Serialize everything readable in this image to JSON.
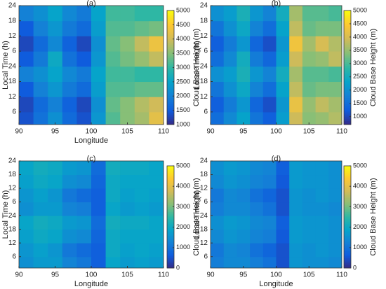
{
  "chart_data": [
    {
      "type": "heatmap",
      "title": "(a)",
      "x_label": "Longitude",
      "y_label": "Local Time (h)",
      "colorbar_label": "Cloud Base Height (m)",
      "xbins": [
        90,
        92,
        94,
        96,
        98,
        100,
        102,
        104,
        106,
        108,
        110
      ],
      "ybins": [
        0,
        6,
        12,
        18,
        24,
        30,
        36,
        42,
        48
      ],
      "values": [
        [
          1400,
          1800,
          2200,
          1700,
          1400,
          2300,
          3200,
          3500,
          3700,
          4200
        ],
        [
          1300,
          1700,
          2000,
          1600,
          1300,
          2200,
          3300,
          3500,
          3800,
          4000
        ],
        [
          1500,
          2000,
          2300,
          1900,
          1700,
          2400,
          3200,
          3200,
          3300,
          3300
        ],
        [
          2000,
          2200,
          2500,
          2100,
          1900,
          2500,
          3100,
          3100,
          3000,
          3000
        ],
        [
          1500,
          1900,
          2600,
          1800,
          1500,
          2300,
          3200,
          3400,
          3600,
          3900
        ],
        [
          1300,
          1700,
          2100,
          1600,
          1300,
          2200,
          3300,
          3500,
          3900,
          4300
        ],
        [
          1500,
          2000,
          2300,
          1900,
          1700,
          2400,
          3200,
          3200,
          3300,
          3400
        ],
        [
          2000,
          2200,
          2500,
          2100,
          1900,
          2500,
          3100,
          3100,
          3000,
          3000
        ]
      ],
      "xlim": [
        90,
        110
      ],
      "xticks": [
        90,
        95,
        100,
        105,
        110
      ],
      "ylim": [
        1,
        48
      ],
      "yticks": [
        6,
        12,
        18,
        24,
        {
          "value": 30,
          "label": "6"
        },
        {
          "value": 36,
          "label": "12"
        },
        {
          "value": 42,
          "label": "18"
        },
        {
          "value": 48,
          "label": "24"
        }
      ],
      "clim": [
        1000,
        5000
      ],
      "cticks": [
        1000,
        1500,
        2000,
        2500,
        3000,
        3500,
        4000,
        4500,
        5000
      ],
      "colormap": [
        "#352a87",
        "#0f5cdd",
        "#1481d6",
        "#06a4ca",
        "#2eb7a4",
        "#87bf77",
        "#d1bb59",
        "#fec832",
        "#f9fb0e"
      ]
    },
    {
      "type": "heatmap",
      "title": "(b)",
      "y_label": "Local Time (h)",
      "colorbar_label": "Cloud Base Height (m)",
      "xbins": [
        90,
        92,
        94,
        96,
        98,
        100,
        102,
        104,
        106,
        108,
        110
      ],
      "ybins": [
        0,
        6,
        12,
        18,
        24,
        30,
        36,
        42,
        48
      ],
      "values": [
        [
          1500,
          1900,
          2300,
          1600,
          1300,
          2200,
          3900,
          3400,
          3500,
          3700
        ],
        [
          1300,
          1700,
          2100,
          1400,
          1100,
          2100,
          4200,
          3500,
          3800,
          3600
        ],
        [
          1600,
          2000,
          2400,
          1800,
          1500,
          2300,
          3800,
          3200,
          3300,
          3300
        ],
        [
          2000,
          2200,
          2600,
          2100,
          1800,
          2500,
          3600,
          3100,
          3100,
          3000
        ],
        [
          1500,
          1900,
          2500,
          1700,
          1400,
          2200,
          3900,
          3400,
          3500,
          3800
        ],
        [
          1300,
          1700,
          2100,
          1400,
          1100,
          2100,
          4300,
          3600,
          4000,
          3700
        ],
        [
          1600,
          2000,
          2400,
          1800,
          1500,
          2300,
          3800,
          3200,
          3300,
          3300
        ],
        [
          2000,
          2200,
          2600,
          2100,
          1800,
          2500,
          3600,
          3100,
          3100,
          3000
        ]
      ],
      "xlim": [
        90,
        110
      ],
      "xticks": [
        90,
        95,
        100,
        105,
        110
      ],
      "ylim": [
        1,
        48
      ],
      "yticks": [
        6,
        12,
        18,
        24,
        {
          "value": 30,
          "label": "6"
        },
        {
          "value": 36,
          "label": "12"
        },
        {
          "value": 42,
          "label": "18"
        },
        {
          "value": 48,
          "label": "24"
        }
      ],
      "clim": [
        700,
        5000
      ],
      "cticks": [
        1000,
        1500,
        2000,
        2500,
        3000,
        3500,
        4000,
        4500,
        5000
      ],
      "colormap": [
        "#352a87",
        "#0f5cdd",
        "#1481d6",
        "#06a4ca",
        "#2eb7a4",
        "#87bf77",
        "#d1bb59",
        "#fec832",
        "#f9fb0e"
      ]
    },
    {
      "type": "heatmap",
      "title": "(c)",
      "x_label": "Longitude",
      "y_label": "Local Time (h)",
      "colorbar_label": "Cloud Base Height (m)",
      "xbins": [
        90,
        92,
        94,
        96,
        98,
        100,
        102,
        104,
        106,
        108,
        110
      ],
      "ybins": [
        0,
        6,
        12,
        18,
        24,
        30,
        36,
        42,
        48
      ],
      "values": [
        [
          1500,
          1700,
          1700,
          1300,
          1100,
          700,
          1900,
          1700,
          1800,
          1700
        ],
        [
          1600,
          1800,
          1600,
          1100,
          900,
          700,
          2000,
          1800,
          1900,
          1800
        ],
        [
          1800,
          2000,
          1900,
          1500,
          1400,
          800,
          2000,
          1900,
          1900,
          1900
        ],
        [
          1900,
          2100,
          2000,
          1700,
          1600,
          900,
          2100,
          2000,
          2000,
          1900
        ],
        [
          1500,
          1700,
          1700,
          1300,
          1200,
          700,
          1900,
          1700,
          1800,
          1700
        ],
        [
          1600,
          1800,
          1600,
          1100,
          900,
          700,
          2000,
          1800,
          1900,
          1800
        ],
        [
          1800,
          2000,
          1900,
          1500,
          1400,
          800,
          2000,
          1900,
          1900,
          1900
        ],
        [
          1900,
          2100,
          2000,
          1700,
          1600,
          900,
          2100,
          2000,
          2000,
          1900
        ]
      ],
      "xlim": [
        90,
        110
      ],
      "xticks": [
        90,
        95,
        100,
        105,
        110
      ],
      "ylim": [
        1,
        48
      ],
      "yticks": [
        6,
        12,
        18,
        24,
        {
          "value": 30,
          "label": "6"
        },
        {
          "value": 36,
          "label": "12"
        },
        {
          "value": 42,
          "label": "18"
        },
        {
          "value": 48,
          "label": "24"
        }
      ],
      "clim": [
        0,
        5000
      ],
      "cticks": [
        0,
        1000,
        2000,
        3000,
        4000,
        5000
      ],
      "colormap": [
        "#352a87",
        "#0f5cdd",
        "#1481d6",
        "#06a4ca",
        "#2eb7a4",
        "#87bf77",
        "#d1bb59",
        "#fec832",
        "#f9fb0e"
      ]
    },
    {
      "type": "heatmap",
      "title": "(d)",
      "x_label": "Longitude",
      "y_label": "Local Time (h)",
      "colorbar_label": "Cloud Base Height (m)",
      "xbins": [
        90,
        92,
        94,
        96,
        98,
        100,
        102,
        104,
        106,
        108,
        110
      ],
      "ybins": [
        0,
        6,
        12,
        18,
        24,
        30,
        36,
        42,
        48
      ],
      "values": [
        [
          1200,
          1400,
          1400,
          1200,
          1000,
          500,
          1600,
          1500,
          1500,
          1400
        ],
        [
          1100,
          1400,
          1300,
          1000,
          800,
          500,
          1600,
          1500,
          1600,
          1500
        ],
        [
          1400,
          1600,
          1500,
          1300,
          1200,
          600,
          1700,
          1600,
          1600,
          1500
        ],
        [
          1500,
          1700,
          1600,
          1400,
          1300,
          700,
          1700,
          1600,
          1600,
          1500
        ],
        [
          1200,
          1400,
          1400,
          1200,
          1000,
          500,
          1600,
          1500,
          1500,
          1400
        ],
        [
          1100,
          1400,
          1300,
          1000,
          800,
          500,
          1600,
          1500,
          1600,
          1500
        ],
        [
          1400,
          1600,
          1500,
          1300,
          1200,
          600,
          1700,
          1600,
          1600,
          1500
        ],
        [
          1500,
          1700,
          1600,
          1400,
          1300,
          700,
          1700,
          1600,
          1600,
          1500
        ]
      ],
      "xlim": [
        90,
        110
      ],
      "xticks": [
        90,
        95,
        100,
        105,
        110
      ],
      "ylim": [
        1,
        48
      ],
      "yticks": [
        6,
        12,
        18,
        24,
        {
          "value": 30,
          "label": "6"
        },
        {
          "value": 36,
          "label": "12"
        },
        {
          "value": 42,
          "label": "18"
        },
        {
          "value": 48,
          "label": "24"
        }
      ],
      "clim": [
        0,
        5000
      ],
      "cticks": [
        0,
        1000,
        2000,
        3000,
        4000,
        5000
      ],
      "colormap": [
        "#352a87",
        "#0f5cdd",
        "#1481d6",
        "#06a4ca",
        "#2eb7a4",
        "#87bf77",
        "#d1bb59",
        "#fec832",
        "#f9fb0e"
      ]
    }
  ]
}
